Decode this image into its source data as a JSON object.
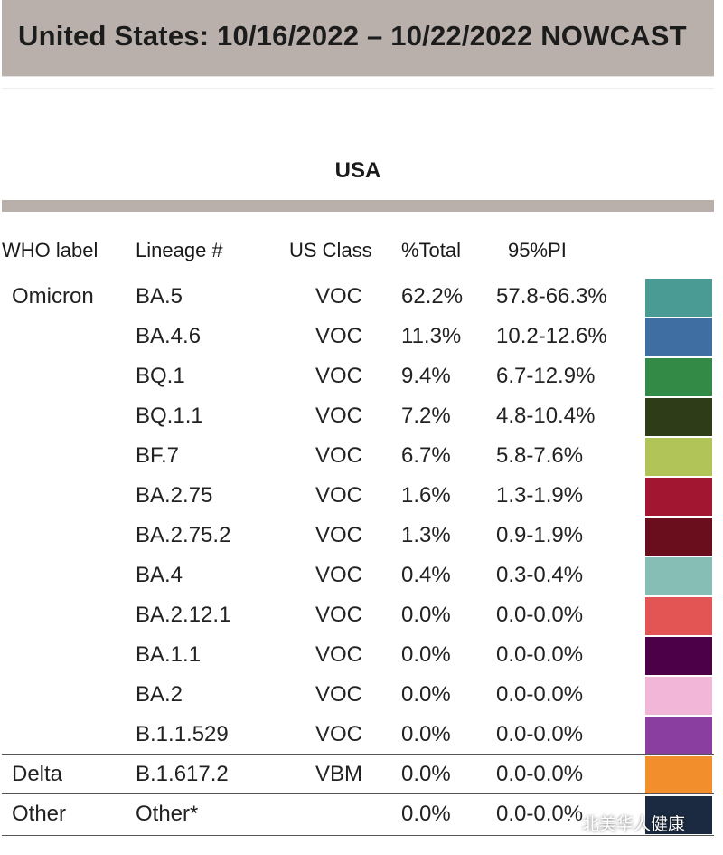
{
  "header": {
    "title": "United States: 10/16/2022 – 10/22/2022 NOWCAST"
  },
  "region": {
    "title": "USA"
  },
  "columns": {
    "who_label": "WHO label",
    "lineage": "Lineage #",
    "us_class": "US Class",
    "total": "%Total",
    "pi": "95%PI"
  },
  "chart_data": {
    "type": "table",
    "title": "United States: 10/16/2022 – 10/22/2022 NOWCAST",
    "subtitle": "USA",
    "columns": [
      "WHO label",
      "Lineage #",
      "US Class",
      "%Total",
      "95%PI"
    ],
    "rows": [
      {
        "who": "Omicron",
        "lineage": "BA.5",
        "class": "VOC",
        "total": "62.2%",
        "pi": "57.8-66.3%",
        "color": "#4a9b94"
      },
      {
        "who": "",
        "lineage": "BA.4.6",
        "class": "VOC",
        "total": "11.3%",
        "pi": "10.2-12.6%",
        "color": "#3f6ea3"
      },
      {
        "who": "",
        "lineage": "BQ.1",
        "class": "VOC",
        "total": "9.4%",
        "pi": "6.7-12.9%",
        "color": "#338a46"
      },
      {
        "who": "",
        "lineage": "BQ.1.1",
        "class": "VOC",
        "total": "7.2%",
        "pi": "4.8-10.4%",
        "color": "#2e3d17"
      },
      {
        "who": "",
        "lineage": "BF.7",
        "class": "VOC",
        "total": "6.7%",
        "pi": "5.8-7.6%",
        "color": "#b0c458"
      },
      {
        "who": "",
        "lineage": "BA.2.75",
        "class": "VOC",
        "total": "1.6%",
        "pi": "1.3-1.9%",
        "color": "#a31631"
      },
      {
        "who": "",
        "lineage": "BA.2.75.2",
        "class": "VOC",
        "total": "1.3%",
        "pi": "0.9-1.9%",
        "color": "#6a0d1d"
      },
      {
        "who": "",
        "lineage": "BA.4",
        "class": "VOC",
        "total": "0.4%",
        "pi": "0.3-0.4%",
        "color": "#86bdb4"
      },
      {
        "who": "",
        "lineage": "BA.2.12.1",
        "class": "VOC",
        "total": "0.0%",
        "pi": "0.0-0.0%",
        "color": "#e35555"
      },
      {
        "who": "",
        "lineage": "BA.1.1",
        "class": "VOC",
        "total": "0.0%",
        "pi": "0.0-0.0%",
        "color": "#4c0047"
      },
      {
        "who": "",
        "lineage": "BA.2",
        "class": "VOC",
        "total": "0.0%",
        "pi": "0.0-0.0%",
        "color": "#f2b6d9"
      },
      {
        "who": "",
        "lineage": "B.1.1.529",
        "class": "VOC",
        "total": "0.0%",
        "pi": "0.0-0.0%",
        "color": "#8a3fa0"
      },
      {
        "who": "Delta",
        "lineage": "B.1.617.2",
        "class": "VBM",
        "total": "0.0%",
        "pi": "0.0-0.0%",
        "color": "#f28e2b"
      },
      {
        "who": "Other",
        "lineage": "Other*",
        "class": "",
        "total": "0.0%",
        "pi": "0.0-0.0%",
        "color": "#1b2a40"
      }
    ],
    "group_separators_after": [
      11,
      12
    ]
  },
  "watermark": {
    "text": "北美华人健康"
  }
}
